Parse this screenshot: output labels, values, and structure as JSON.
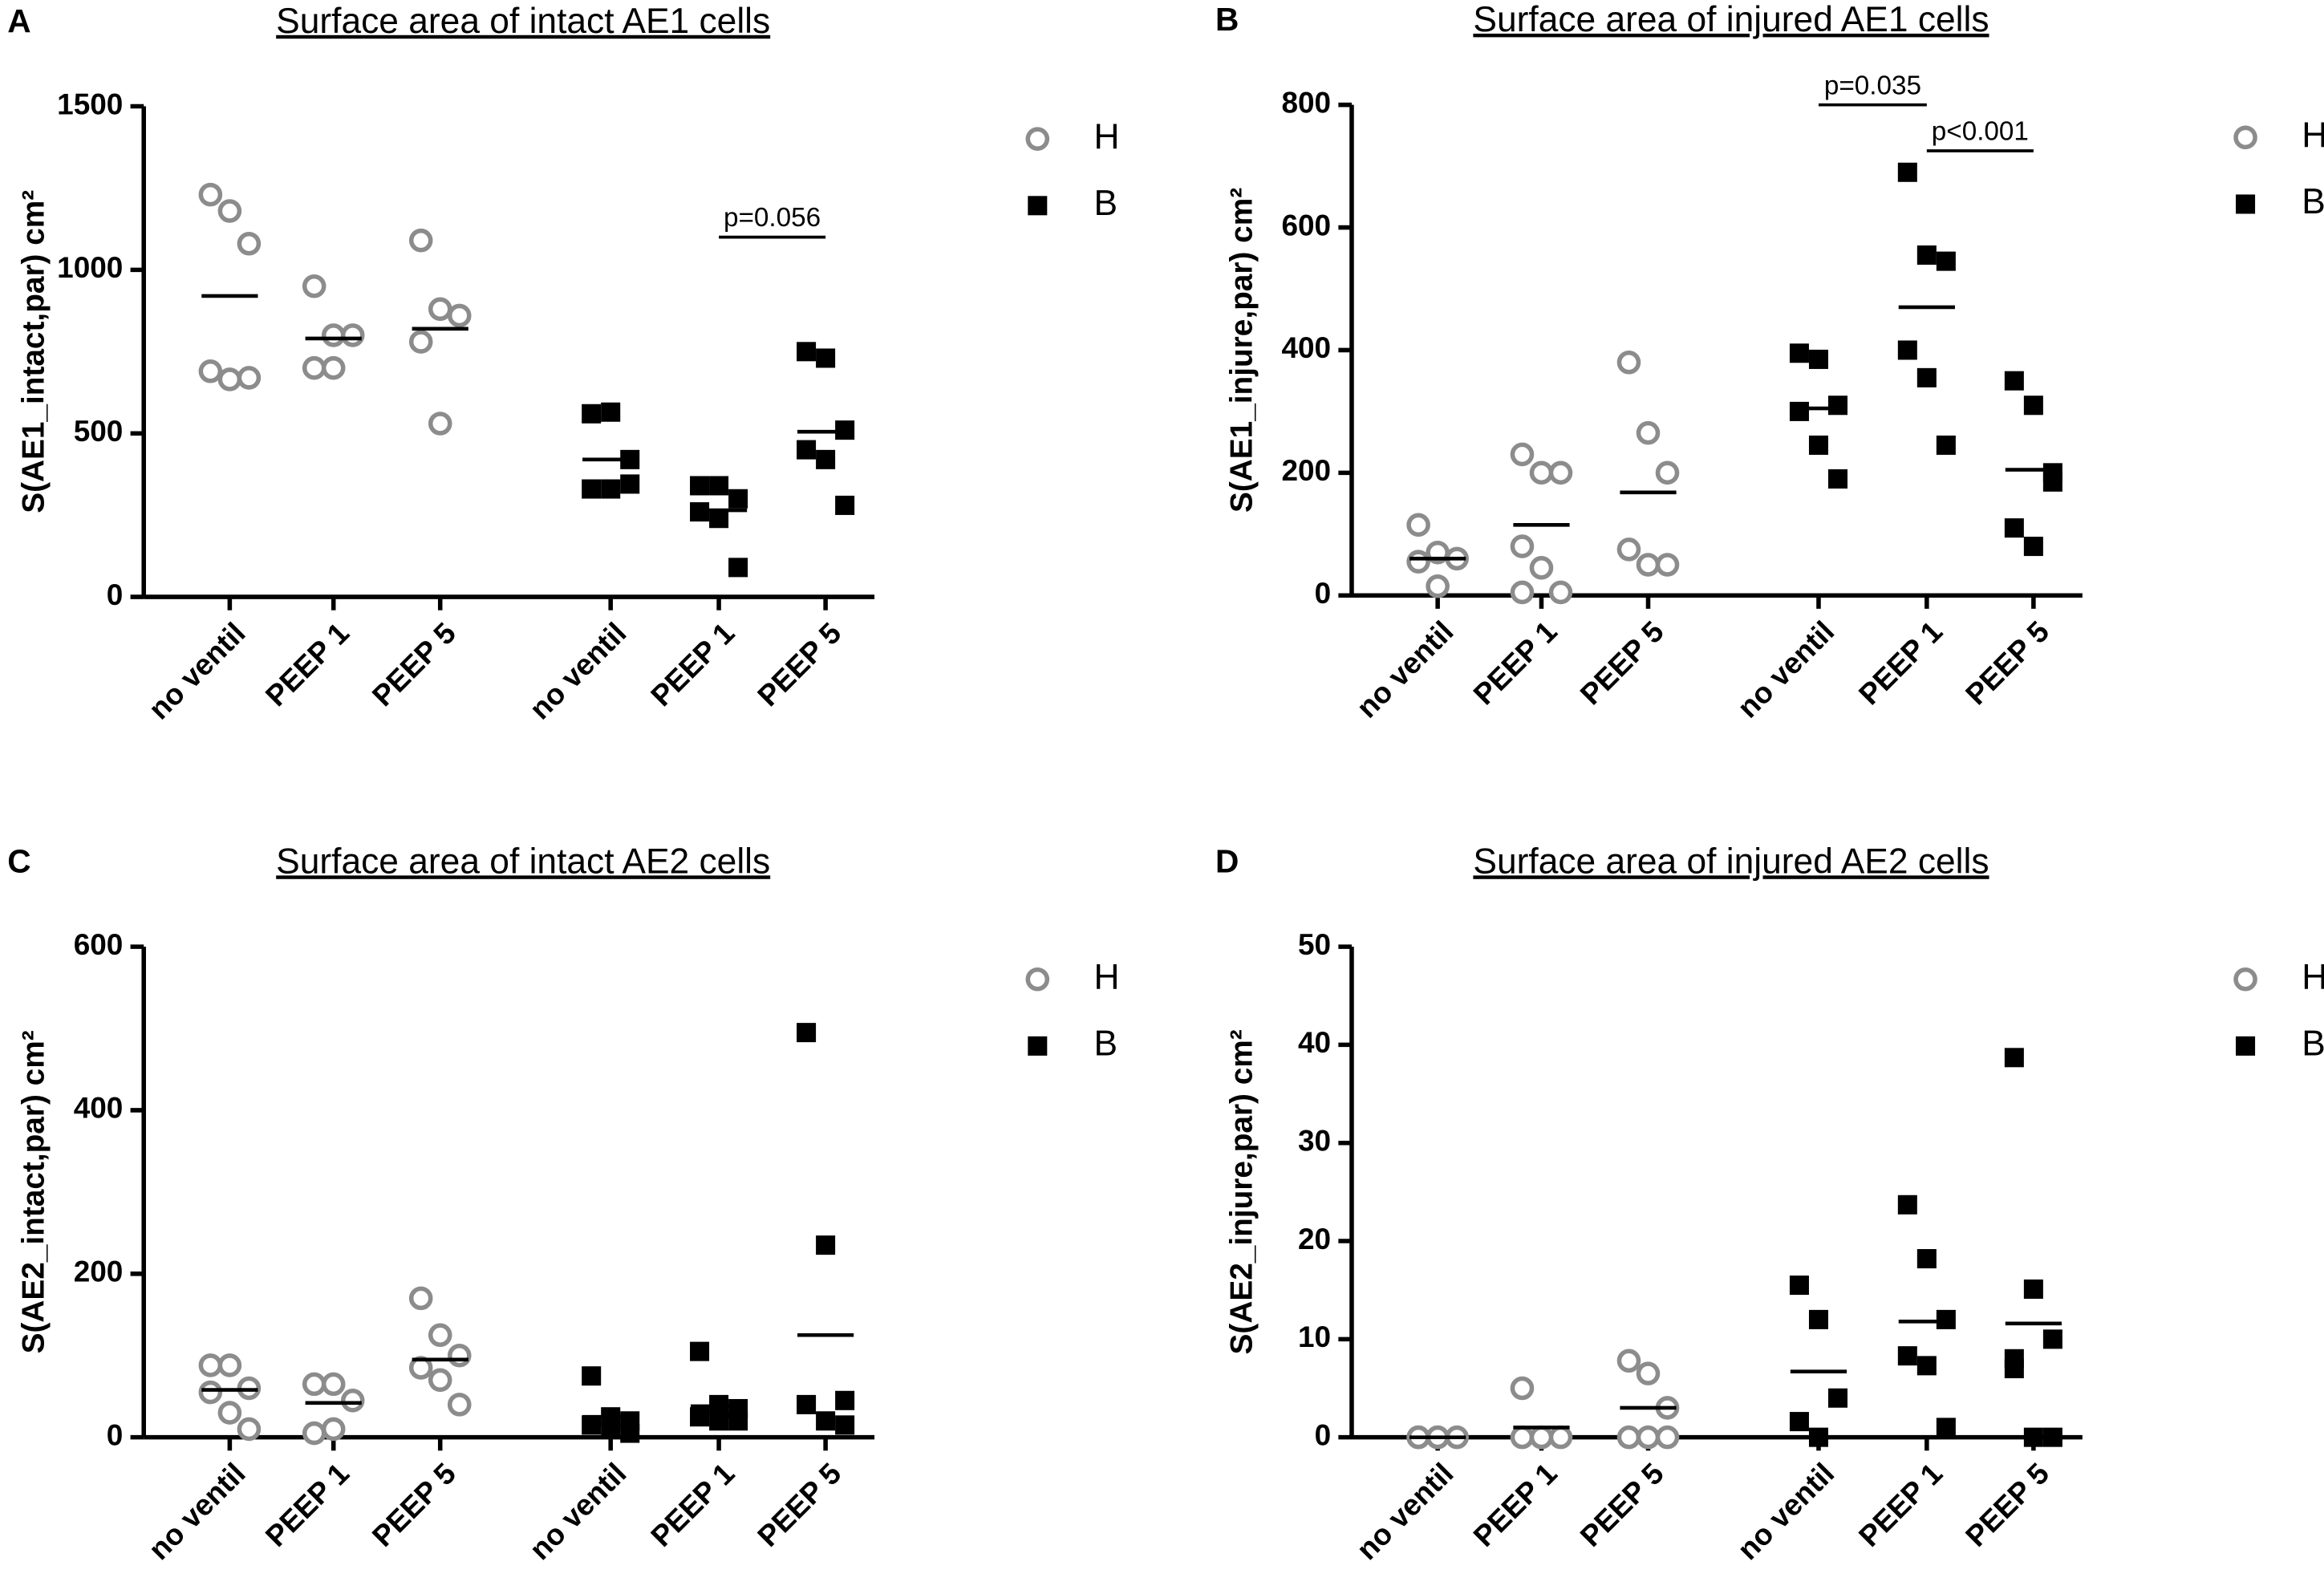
{
  "chart_data": [
    {
      "type": "dot",
      "panel": "A",
      "title": "Surface area of intact AE1 cells",
      "y_label": "S(AE1_intact,par) cm²",
      "categories": [
        "no ventil",
        "PEEP 1",
        "PEEP 5",
        "no ventil",
        "PEEP 1",
        "PEEP 5"
      ],
      "ylim": [
        0,
        1500
      ],
      "yticks": [
        0,
        500,
        1000,
        1500
      ],
      "series": [
        {
          "name": "H",
          "color": "#8c8c8c",
          "marker": "circle",
          "values": [
            [
              1230,
              1180,
              1080,
              690,
              665,
              670
            ],
            [
              950,
              800,
              800,
              700,
              700
            ],
            [
              1090,
              880,
              860,
              780,
              530
            ],
            null,
            null,
            null
          ],
          "means": [
            920,
            790,
            820,
            null,
            null,
            null
          ]
        },
        {
          "name": "B",
          "color": "#000000",
          "marker": "square",
          "values": [
            null,
            null,
            null,
            [
              560,
              565,
              420,
              330,
              330,
              345
            ],
            [
              340,
              340,
              300,
              260,
              240,
              90
            ],
            [
              750,
              730,
              510,
              450,
              420,
              280
            ]
          ],
          "means": [
            null,
            null,
            null,
            420,
            265,
            505
          ]
        }
      ],
      "annotations": [
        {
          "label": "p=0.056",
          "between": [
            4,
            5
          ],
          "y": 1100
        }
      ]
    },
    {
      "type": "dot",
      "panel": "B",
      "title": "Surface area of injured AE1 cells",
      "y_label": "S(AE1_injure,par) cm²",
      "categories": [
        "no ventil",
        "PEEP 1",
        "PEEP 5",
        "no ventil",
        "PEEP 1",
        "PEEP 5"
      ],
      "ylim": [
        0,
        800
      ],
      "yticks": [
        0,
        200,
        400,
        600,
        800
      ],
      "series": [
        {
          "name": "H",
          "color": "#8c8c8c",
          "marker": "circle",
          "values": [
            [
              115,
              70,
              60,
              55,
              15
            ],
            [
              230,
              200,
              200,
              80,
              45,
              5,
              5
            ],
            [
              380,
              265,
              200,
              75,
              50,
              50
            ],
            null,
            null,
            null
          ],
          "means": [
            60,
            115,
            168,
            null,
            null,
            null
          ]
        },
        {
          "name": "B",
          "color": "#000000",
          "marker": "square",
          "values": [
            null,
            null,
            null,
            [
              395,
              385,
              310,
              300,
              245,
              190
            ],
            [
              690,
              555,
              545,
              400,
              355,
              245
            ],
            [
              350,
              310,
              185,
              110,
              80,
              200
            ]
          ],
          "means": [
            null,
            null,
            null,
            305,
            470,
            205
          ]
        }
      ],
      "annotations": [
        {
          "label": "p=0.035",
          "between": [
            3,
            4
          ],
          "y": 800
        },
        {
          "label": "p<0.001",
          "between": [
            4,
            5
          ],
          "y": 725
        }
      ]
    },
    {
      "type": "dot",
      "panel": "C",
      "title": "Surface area of intact AE2 cells",
      "y_label": "S(AE2_intact,par) cm²",
      "categories": [
        "no ventil",
        "PEEP 1",
        "PEEP 5",
        "no ventil",
        "PEEP 1",
        "PEEP 5"
      ],
      "ylim": [
        0,
        600
      ],
      "yticks": [
        0,
        200,
        400,
        600
      ],
      "series": [
        {
          "name": "H",
          "color": "#8c8c8c",
          "marker": "circle",
          "values": [
            [
              88,
              88,
              60,
              55,
              30,
              10
            ],
            [
              65,
              65,
              45,
              5,
              10
            ],
            [
              170,
              125,
              100,
              85,
              70,
              40
            ],
            null,
            null,
            null
          ],
          "means": [
            58,
            42,
            95,
            null,
            null,
            null
          ]
        },
        {
          "name": "B",
          "color": "#000000",
          "marker": "square",
          "values": [
            null,
            null,
            null,
            [
              75,
              25,
              20,
              15,
              10,
              5
            ],
            [
              105,
              40,
              35,
              25,
              20,
              20
            ],
            [
              495,
              235,
              45,
              40,
              20,
              15
            ]
          ],
          "means": [
            null,
            null,
            null,
            25,
            38,
            125
          ]
        }
      ],
      "annotations": []
    },
    {
      "type": "dot",
      "panel": "D",
      "title": "Surface area of injured AE2 cells",
      "y_label": "S(AE2_injure,par) cm²",
      "categories": [
        "no ventil",
        "PEEP 1",
        "PEEP 5",
        "no ventil",
        "PEEP 1",
        "PEEP 5"
      ],
      "ylim": [
        0,
        50
      ],
      "yticks": [
        0,
        10,
        20,
        30,
        40,
        50
      ],
      "series": [
        {
          "name": "H",
          "color": "#8c8c8c",
          "marker": "circle",
          "values": [
            [
              0,
              0,
              0,
              0,
              0
            ],
            [
              5,
              0,
              0,
              0,
              0
            ],
            [
              7.8,
              6.5,
              3,
              0,
              0,
              0
            ],
            null,
            null,
            null
          ],
          "means": [
            0,
            1,
            3,
            null,
            null,
            null
          ]
        },
        {
          "name": "B",
          "color": "#000000",
          "marker": "square",
          "values": [
            null,
            null,
            null,
            [
              15.5,
              12,
              4,
              1.6,
              0
            ],
            [
              23.7,
              18.2,
              12,
              8.3,
              7.3,
              1
            ],
            [
              38.7,
              15.1,
              10,
              8,
              0,
              0,
              7
            ]
          ],
          "means": [
            null,
            null,
            null,
            6.7,
            11.8,
            11.6
          ]
        }
      ],
      "annotations": []
    }
  ]
}
